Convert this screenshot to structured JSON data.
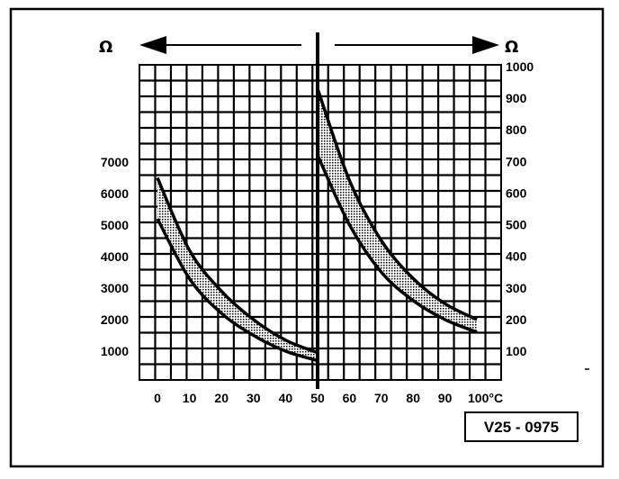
{
  "chart_data": {
    "type": "area",
    "title": "",
    "x": {
      "ticks": [
        "0",
        "10",
        "20",
        "30",
        "40",
        "50",
        "60",
        "70",
        "80",
        "90",
        "100°C"
      ],
      "range": [
        0,
        100
      ],
      "unit_label": "100°C"
    },
    "left_axis": {
      "unit": "Ω",
      "ticks": [
        "1000",
        "2000",
        "3000",
        "4000",
        "5000",
        "6000",
        "7000"
      ],
      "range": [
        0,
        10000
      ],
      "applies_to_x": [
        0,
        50
      ]
    },
    "right_axis": {
      "unit": "Ω",
      "ticks": [
        "100",
        "200",
        "300",
        "400",
        "500",
        "600",
        "700",
        "800",
        "900",
        "1000"
      ],
      "range": [
        0,
        1000
      ],
      "applies_to_x": [
        50,
        100
      ]
    },
    "grid": true,
    "series": [
      {
        "axis": "left",
        "x": [
          0,
          10,
          20,
          30,
          40,
          50
        ],
        "upper": [
          6500,
          4200,
          2900,
          2000,
          1350,
          950
        ],
        "lower": [
          5200,
          3300,
          2200,
          1500,
          1000,
          700
        ]
      },
      {
        "axis": "right",
        "x": [
          50,
          60,
          70,
          80,
          90,
          100
        ],
        "upper": [
          930,
          640,
          450,
          330,
          250,
          200
        ],
        "lower": [
          720,
          500,
          350,
          260,
          200,
          160
        ]
      }
    ],
    "reference_label": "V25 - 0975"
  }
}
